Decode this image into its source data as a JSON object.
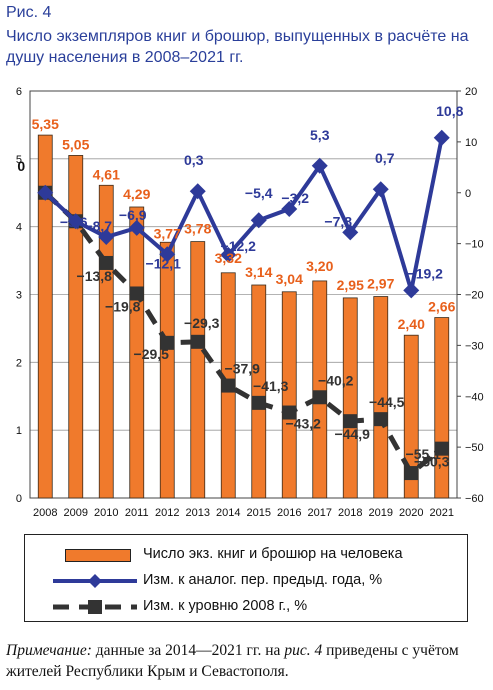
{
  "figure": {
    "label": "Рис. 4",
    "title": "Число экземпляров книг и брошюр, выпущенных в расчёте на душу населения в 2008–2021 гг."
  },
  "colors": {
    "bars": "#f07a2c",
    "blue_series": "#2e3a99",
    "dark_series": "#333333",
    "bar_labels": "#e8601c",
    "title": "#2a3f9a"
  },
  "chart_data": {
    "type": "bar",
    "categories": [
      "2008",
      "2009",
      "2010",
      "2011",
      "2012",
      "2013",
      "2014",
      "2015",
      "2016",
      "2017",
      "2018",
      "2019",
      "2020",
      "2021"
    ],
    "left_axis": {
      "ylim": [
        0,
        6
      ],
      "ticks": [
        "0",
        "1",
        "2",
        "3",
        "4",
        "5",
        "6"
      ]
    },
    "right_axis": {
      "ylim": [
        -60,
        20
      ],
      "ticks": [
        "-60",
        "-50",
        "-40",
        "-30",
        "-20",
        "-10",
        "0",
        "10",
        "20"
      ]
    },
    "series": [
      {
        "name": "Число экз. книг и брошюр на человека",
        "kind": "bar",
        "axis": "left",
        "values": [
          5.35,
          5.05,
          4.61,
          4.29,
          3.77,
          3.78,
          3.32,
          3.14,
          3.04,
          3.2,
          2.95,
          2.97,
          2.4,
          2.66
        ],
        "labels": [
          "5,35",
          "5,05",
          "4,61",
          "4,29",
          "3,77",
          "3,78",
          "3,32",
          "3,14",
          "3,04",
          "3,20",
          "2,95",
          "2,97",
          "2,40",
          "2,66"
        ]
      },
      {
        "name": "Изм. к аналог. пер. предыд. года, %",
        "kind": "line",
        "axis": "right",
        "values": [
          0,
          -5.6,
          -8.7,
          -6.9,
          -12.1,
          0.3,
          -12.2,
          -5.4,
          -3.2,
          5.3,
          -7.8,
          0.7,
          -19.2,
          10.8
        ],
        "labels": [
          "0",
          "−5,6",
          "−8,7",
          "−6,9",
          "−12,1",
          "0,3",
          "−12,2",
          "−5,4",
          "−3,2",
          "5,3",
          "−7,8",
          "0,7",
          "−19,2",
          "10,8"
        ]
      },
      {
        "name": "Изм. к уровню 2008 г., %",
        "kind": "line",
        "axis": "right",
        "values": [
          0,
          -5.6,
          -13.8,
          -19.8,
          -29.5,
          -29.3,
          -37.9,
          -41.3,
          -43.2,
          -40.2,
          -44.9,
          -44.5,
          -55.1,
          -50.3
        ],
        "labels": [
          "",
          "",
          "−13,8",
          "−19,8",
          "−29,5",
          "−29,3",
          "−37,9",
          "−41,3",
          "−43,2",
          "−40,2",
          "−44,9",
          "−44,5",
          "−55,1",
          "−50,3"
        ]
      }
    ]
  },
  "legend": {
    "items": [
      "Число экз. книг и брошюр на человека",
      "Изм. к аналог. пер. предыд. года, %",
      "Изм. к уровню 2008 г., %"
    ]
  },
  "note": {
    "label": "Примечание:",
    "text_a": " данные за 2014—2021 гг. на ",
    "ref": "рис. 4",
    "text_b": " приведены с учётом жителей Республики Крым и Севастополя."
  }
}
